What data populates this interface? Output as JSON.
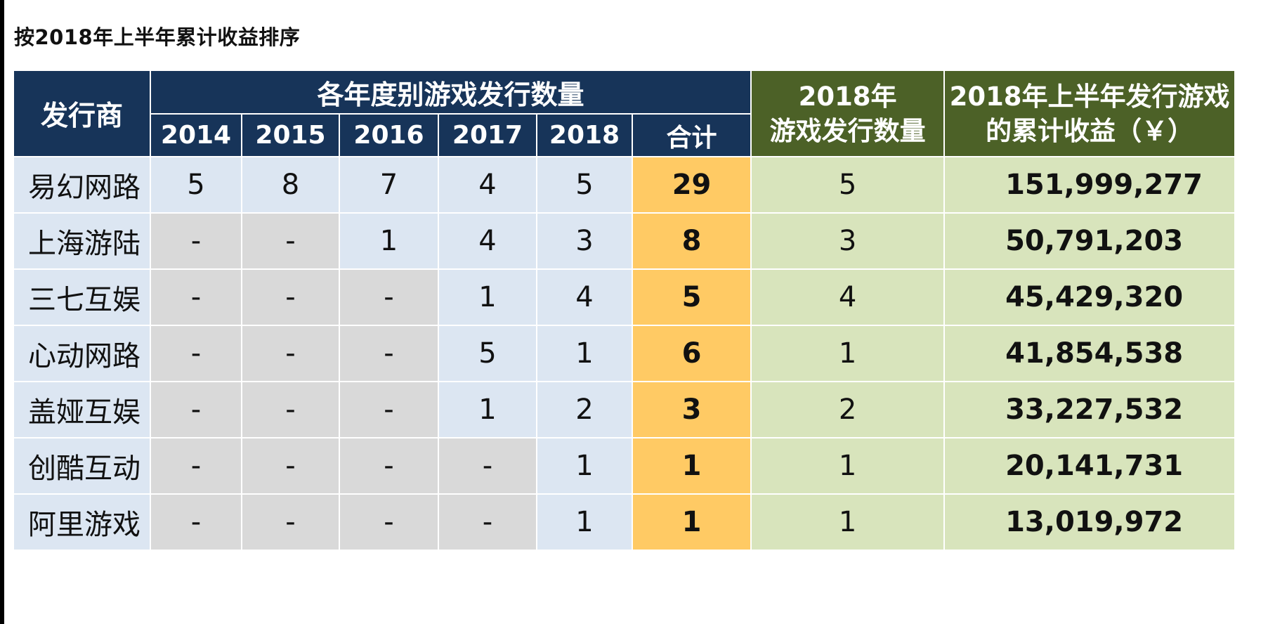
{
  "title": "按2018年上半年累计收益排序",
  "chart_data": {
    "type": "table",
    "headers": {
      "publisher": "发行商",
      "group": "各年度别游戏发行数量",
      "years": [
        "2014",
        "2015",
        "2016",
        "2017",
        "2018"
      ],
      "total": "合计",
      "released_2018_line1": "2018年",
      "released_2018_line2": "游戏发行数量",
      "revenue_line1": "2018年上半年发行游戏",
      "revenue_line2": "的累计收益（￥）"
    },
    "rows": [
      {
        "publisher": "易幻网路",
        "years": [
          "5",
          "8",
          "7",
          "4",
          "5"
        ],
        "total": "29",
        "released_2018": "5",
        "revenue": "151,999,277"
      },
      {
        "publisher": "上海游陆",
        "years": [
          "-",
          "-",
          "1",
          "4",
          "3"
        ],
        "total": "8",
        "released_2018": "3",
        "revenue": "50,791,203"
      },
      {
        "publisher": "三七互娱",
        "years": [
          "-",
          "-",
          "-",
          "1",
          "4"
        ],
        "total": "5",
        "released_2018": "4",
        "revenue": "45,429,320"
      },
      {
        "publisher": "心动网路",
        "years": [
          "-",
          "-",
          "-",
          "5",
          "1"
        ],
        "total": "6",
        "released_2018": "1",
        "revenue": "41,854,538"
      },
      {
        "publisher": "盖娅互娱",
        "years": [
          "-",
          "-",
          "-",
          "1",
          "2"
        ],
        "total": "3",
        "released_2018": "2",
        "revenue": "33,227,532"
      },
      {
        "publisher": "创酷互动",
        "years": [
          "-",
          "-",
          "-",
          "-",
          "1"
        ],
        "total": "1",
        "released_2018": "1",
        "revenue": "20,141,731"
      },
      {
        "publisher": "阿里游戏",
        "years": [
          "-",
          "-",
          "-",
          "-",
          "1"
        ],
        "total": "1",
        "released_2018": "1",
        "revenue": "13,019,972"
      }
    ]
  },
  "colors": {
    "header_navy": "#173459",
    "header_green": "#4c6127",
    "cell_blue": "#dce6f2",
    "cell_gray": "#d9d9d9",
    "cell_total": "#ffca64",
    "cell_green": "#d8e4bc"
  }
}
